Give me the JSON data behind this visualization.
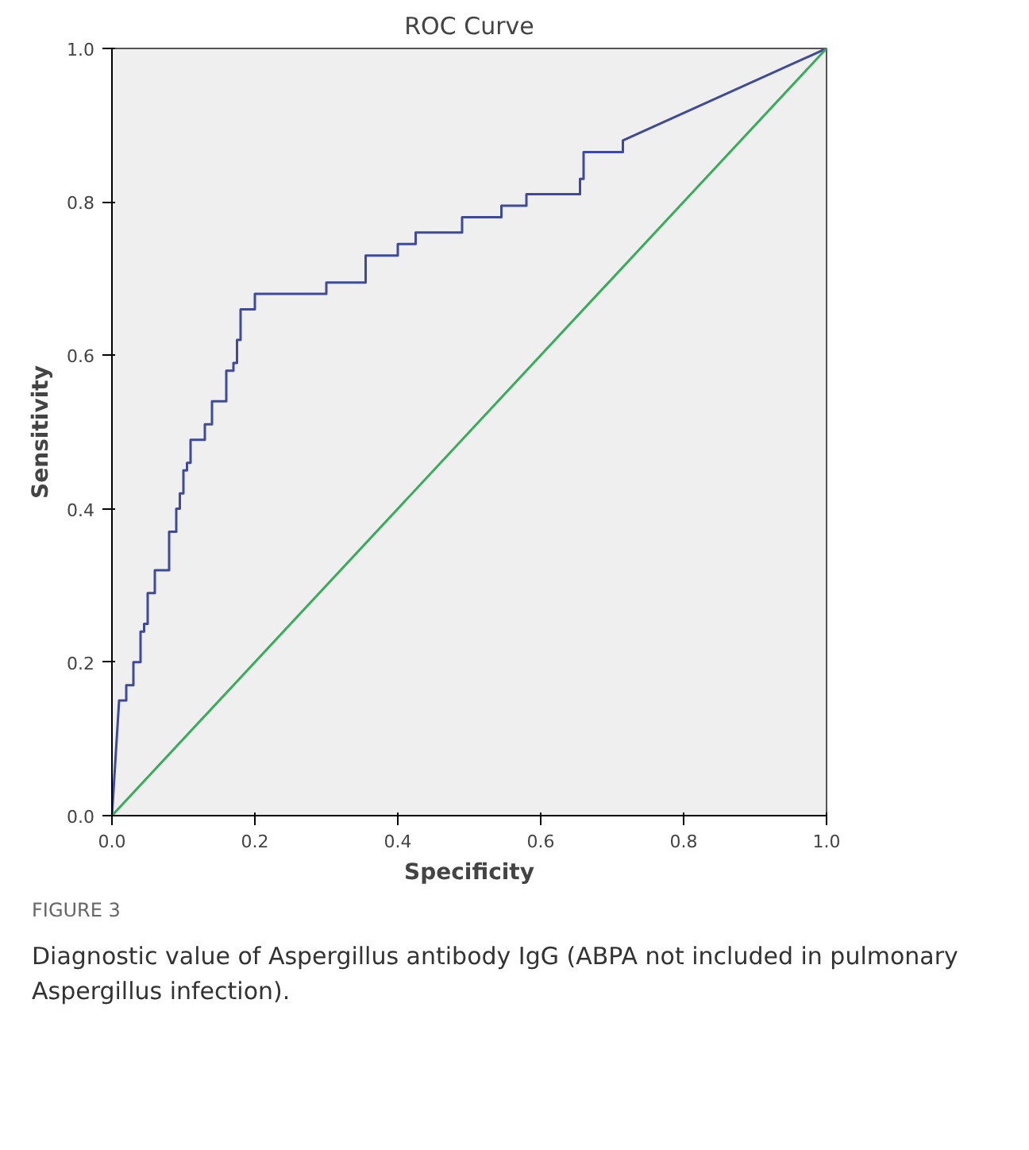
{
  "chart_data": {
    "type": "line",
    "title": "ROC Curve",
    "xlabel": "Specificity",
    "ylabel": "Sensitivity",
    "series": [
      {
        "color": "#3f4a9a",
        "x": [
          0,
          0.01,
          0.02,
          0.02,
          0.03,
          0.03,
          0.04,
          0.04,
          0.045,
          0.045,
          0.05,
          0.05,
          0.06,
          0.06,
          0.08,
          0.08,
          0.09,
          0.09,
          0.095,
          0.095,
          0.1,
          0.1,
          0.105,
          0.105,
          0.11,
          0.11,
          0.13,
          0.13,
          0.14,
          0.14,
          0.16,
          0.16,
          0.17,
          0.17,
          0.175,
          0.175,
          0.18,
          0.18,
          0.2,
          0.2,
          0.3,
          0.3,
          0.355,
          0.355,
          0.4,
          0.4,
          0.425,
          0.425,
          0.49,
          0.49,
          0.545,
          0.545,
          0.58,
          0.58,
          0.655,
          0.655,
          0.66,
          0.66,
          0.715,
          0.715,
          1
        ],
        "values": [
          0,
          0.15,
          0.15,
          0.17,
          0.17,
          0.2,
          0.2,
          0.24,
          0.24,
          0.25,
          0.25,
          0.29,
          0.29,
          0.32,
          0.32,
          0.37,
          0.37,
          0.4,
          0.4,
          0.42,
          0.42,
          0.45,
          0.45,
          0.46,
          0.46,
          0.49,
          0.49,
          0.51,
          0.51,
          0.54,
          0.54,
          0.58,
          0.58,
          0.59,
          0.59,
          0.62,
          0.62,
          0.66,
          0.66,
          0.68,
          0.68,
          0.695,
          0.695,
          0.73,
          0.73,
          0.745,
          0.745,
          0.76,
          0.76,
          0.78,
          0.78,
          0.795,
          0.795,
          0.81,
          0.81,
          0.83,
          0.83,
          0.865,
          0.865,
          0.88,
          1
        ]
      },
      {
        "color": "#3aaa5c",
        "x": [
          0,
          1
        ],
        "values": [
          0,
          1
        ]
      }
    ],
    "xlim": [
      0,
      1
    ],
    "ylim": [
      0,
      1
    ],
    "xticks": [
      "0.0",
      0.2,
      0.4,
      0.6,
      0.8,
      "1.0"
    ],
    "yticks": [
      "0.0",
      0.2,
      0.4,
      0.6,
      0.8,
      "1.0"
    ],
    "annotations": [
      "FIGURE 3",
      "Diagnostic value of Aspergillus antibody IgG (ABPA not included in pulmonary Aspergillus infection)."
    ]
  }
}
